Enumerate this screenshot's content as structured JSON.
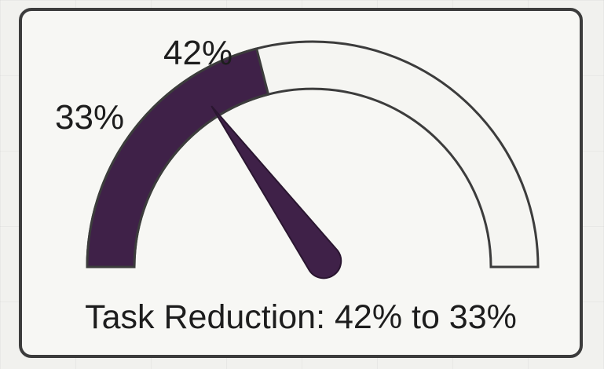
{
  "chart_data": {
    "type": "gauge",
    "title": "Task Reduction: 42% to 33%",
    "scale_min": 0,
    "scale_max": 100,
    "filled_value": 42,
    "needle_value": 33,
    "labels": [
      {
        "value": 42,
        "text": "42%"
      },
      {
        "value": 33,
        "text": "33%"
      }
    ],
    "colors": {
      "fill": "#3f2148",
      "track": "#f5f5f2",
      "outline": "#3c3c3c",
      "needle": "#3f2148"
    }
  }
}
